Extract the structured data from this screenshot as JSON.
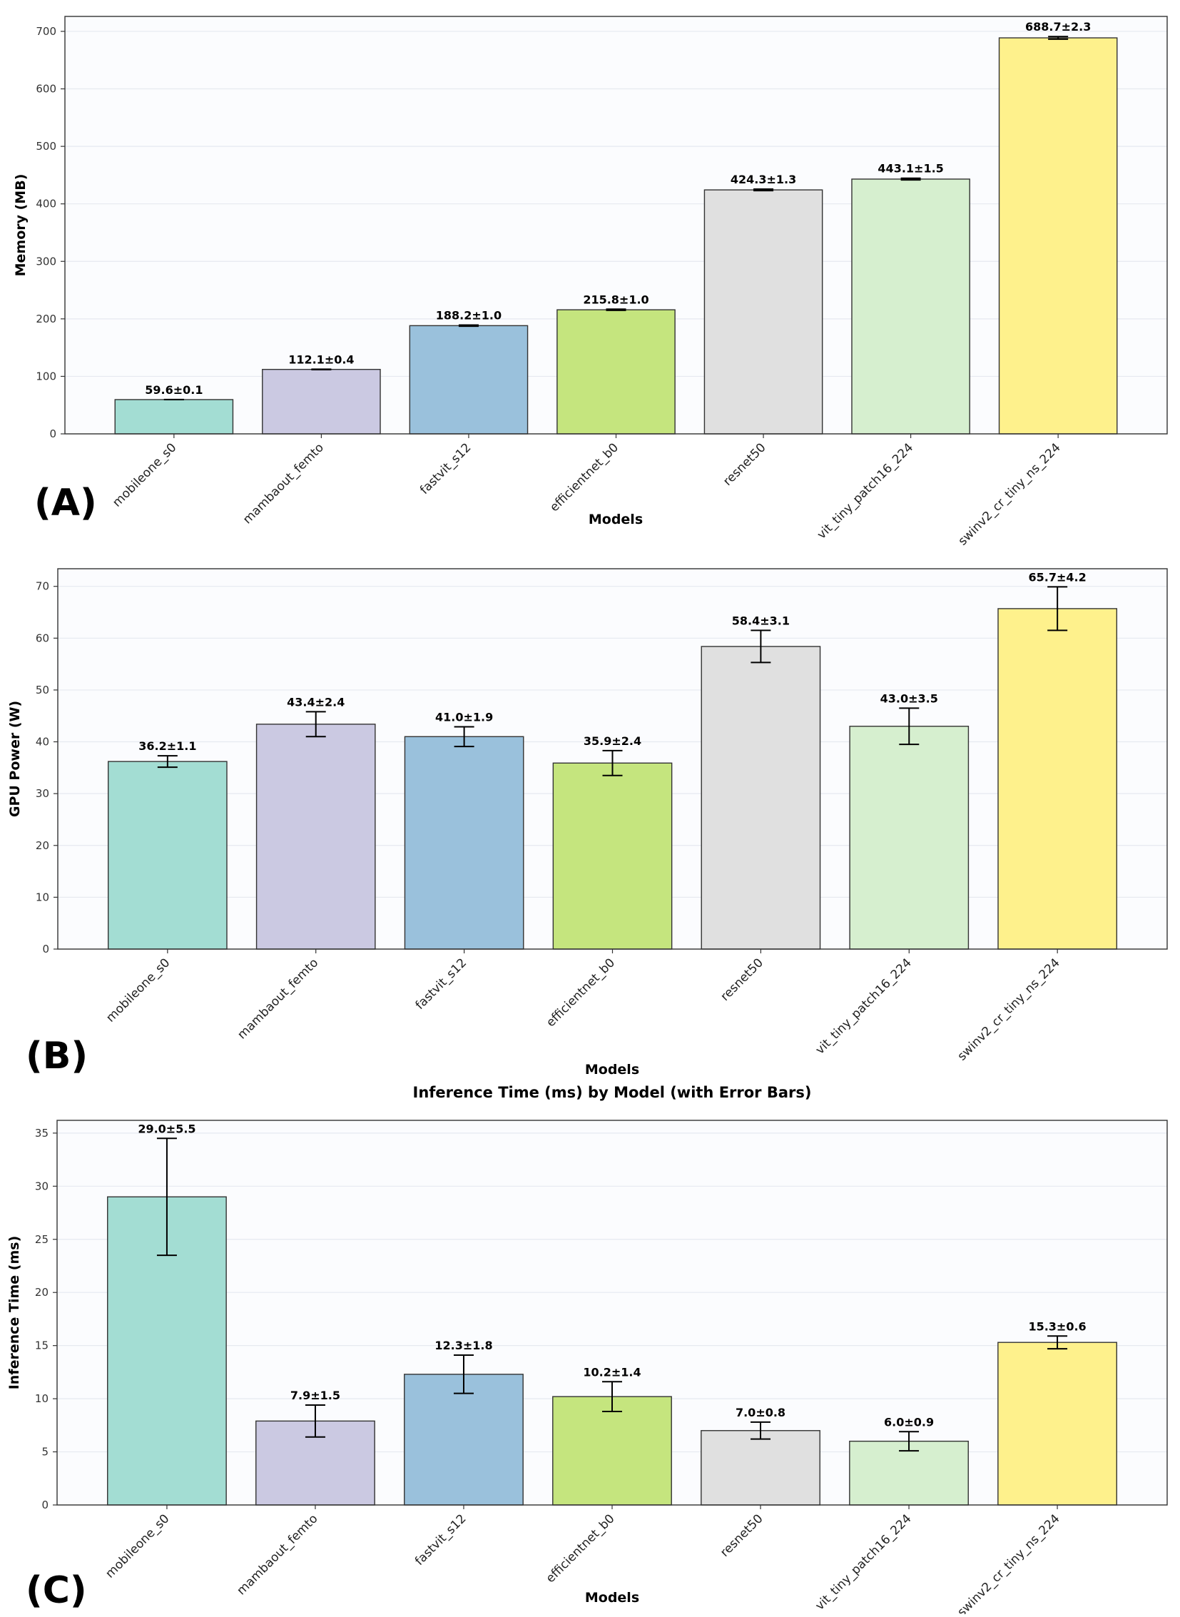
{
  "colors": [
    "#a3ddd3",
    "#cbc9e2",
    "#9ac1dc",
    "#c5e57e",
    "#e0e0e0",
    "#d6efcf",
    "#fef18c"
  ],
  "chart_data": [
    {
      "type": "bar",
      "panel_label": "(A)",
      "title": "",
      "xlabel": "Models",
      "ylabel": "Memory (MB)",
      "categories": [
        "mobileone_s0",
        "mambaout_femto",
        "fastvit_s12",
        "efficientnet_b0",
        "resnet50",
        "vit_tiny_patch16_224",
        "swinv2_cr_tiny_ns_224"
      ],
      "values": [
        59.6,
        112.1,
        188.2,
        215.8,
        424.3,
        443.1,
        688.7
      ],
      "errors": [
        0.1,
        0.4,
        1.0,
        1.0,
        1.3,
        1.5,
        2.3
      ],
      "value_labels": [
        "59.6±0.1",
        "112.1±0.4",
        "188.2±1.0",
        "215.8±1.0",
        "424.3±1.3",
        "443.1±1.5",
        "688.7±2.3"
      ],
      "yticks": [
        "0",
        "100",
        "200",
        "300",
        "400",
        "500",
        "600",
        "700"
      ],
      "ylim": [
        0,
        726
      ],
      "grid": true
    },
    {
      "type": "bar",
      "panel_label": "(B)",
      "title": "",
      "xlabel": "Models",
      "ylabel": "GPU Power (W)",
      "categories": [
        "mobileone_s0",
        "mambaout_femto",
        "fastvit_s12",
        "efficientnet_b0",
        "resnet50",
        "vit_tiny_patch16_224",
        "swinv2_cr_tiny_ns_224"
      ],
      "values": [
        36.2,
        43.4,
        41.0,
        35.9,
        58.4,
        43.0,
        65.7
      ],
      "errors": [
        1.1,
        2.4,
        1.9,
        2.4,
        3.1,
        3.5,
        4.2
      ],
      "value_labels": [
        "36.2±1.1",
        "43.4±2.4",
        "41.0±1.9",
        "35.9±2.4",
        "58.4±3.1",
        "43.0±3.5",
        "65.7±4.2"
      ],
      "yticks": [
        "0",
        "10",
        "20",
        "30",
        "40",
        "50",
        "60",
        "70"
      ],
      "ylim": [
        0,
        73.4
      ],
      "grid": true
    },
    {
      "type": "bar",
      "panel_label": "(C)",
      "title": "Inference Time (ms) by Model (with Error Bars)",
      "xlabel": "Models",
      "ylabel": "Inference Time (ms)",
      "categories": [
        "mobileone_s0",
        "mambaout_femto",
        "fastvit_s12",
        "efficientnet_b0",
        "resnet50",
        "vit_tiny_patch16_224",
        "swinv2_cr_tiny_ns_224"
      ],
      "values": [
        29.0,
        7.9,
        12.3,
        10.2,
        7.0,
        6.0,
        15.3
      ],
      "errors": [
        5.5,
        1.5,
        1.8,
        1.4,
        0.8,
        0.9,
        0.6
      ],
      "value_labels": [
        "29.0±5.5",
        "7.9±1.5",
        "12.3±1.8",
        "10.2±1.4",
        "7.0±0.8",
        "6.0±0.9",
        "15.3±0.6"
      ],
      "yticks": [
        "0",
        "5",
        "10",
        "15",
        "20",
        "25",
        "30",
        "35"
      ],
      "ylim": [
        0,
        36.2
      ],
      "grid": true
    }
  ]
}
